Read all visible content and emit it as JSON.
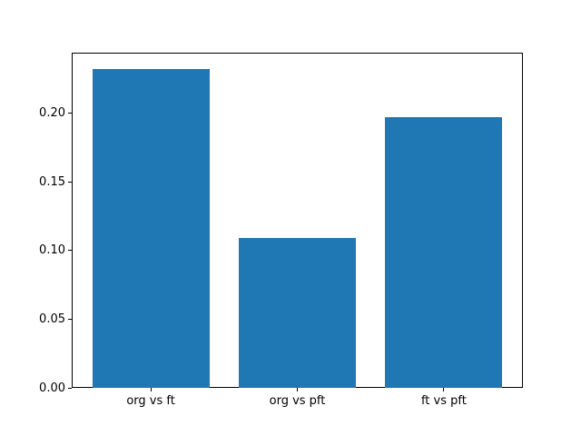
{
  "chart_data": {
    "type": "bar",
    "categories": [
      "org vs ft",
      "org vs pft",
      "ft vs pft"
    ],
    "values": [
      0.232,
      0.109,
      0.197
    ],
    "title": "",
    "xlabel": "",
    "ylabel": "",
    "ylim": [
      0,
      0.244
    ],
    "xlim": [
      -0.54,
      2.54
    ],
    "ytick_labels": [
      "0.00",
      "0.05",
      "0.10",
      "0.15",
      "0.20"
    ],
    "ytick_values": [
      0.0,
      0.05,
      0.1,
      0.15,
      0.2
    ],
    "bar_color": "#1f77b4",
    "bar_width": 0.8,
    "grid": false,
    "legend_visible": false
  }
}
